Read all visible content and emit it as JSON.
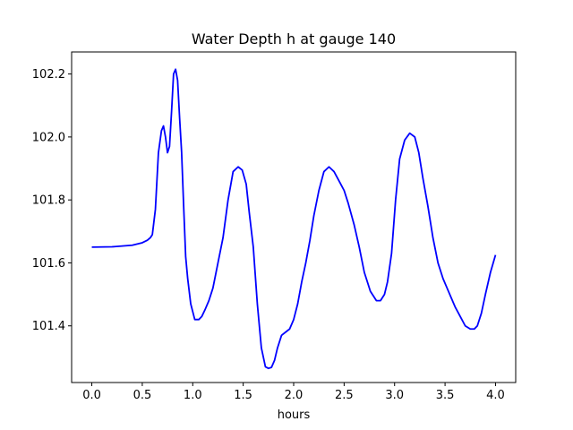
{
  "chart_data": {
    "type": "line",
    "title": "Water Depth h at gauge 140",
    "xlabel": "hours",
    "ylabel": "",
    "xlim": [
      -0.2,
      4.2
    ],
    "ylim": [
      101.22,
      102.27
    ],
    "x_ticks": [
      0.0,
      0.5,
      1.0,
      1.5,
      2.0,
      2.5,
      3.0,
      3.5,
      4.0
    ],
    "x_tick_labels": [
      "0.0",
      "0.5",
      "1.0",
      "1.5",
      "2.0",
      "2.5",
      "3.0",
      "3.5",
      "4.0"
    ],
    "y_ticks": [
      101.4,
      101.6,
      101.8,
      102.0,
      102.2
    ],
    "y_tick_labels": [
      "101.4",
      "101.6",
      "101.8",
      "102.0",
      "102.2"
    ],
    "grid": false,
    "series": [
      {
        "color": "#0000ff",
        "x": [
          0.0,
          0.2,
          0.4,
          0.5,
          0.55,
          0.58,
          0.6,
          0.63,
          0.66,
          0.69,
          0.71,
          0.73,
          0.75,
          0.77,
          0.79,
          0.81,
          0.83,
          0.85,
          0.87,
          0.89,
          0.91,
          0.93,
          0.95,
          0.98,
          1.02,
          1.06,
          1.09,
          1.12,
          1.16,
          1.2,
          1.25,
          1.3,
          1.35,
          1.4,
          1.45,
          1.49,
          1.53,
          1.56,
          1.6,
          1.64,
          1.68,
          1.72,
          1.75,
          1.78,
          1.81,
          1.84,
          1.88,
          1.92,
          1.96,
          2.0,
          2.04,
          2.08,
          2.12,
          2.16,
          2.2,
          2.25,
          2.3,
          2.35,
          2.4,
          2.45,
          2.5,
          2.54,
          2.6,
          2.65,
          2.7,
          2.76,
          2.82,
          2.86,
          2.9,
          2.93,
          2.97,
          3.01,
          3.05,
          3.1,
          3.15,
          3.2,
          3.24,
          3.28,
          3.33,
          3.38,
          3.43,
          3.48,
          3.52,
          3.56,
          3.6,
          3.65,
          3.7,
          3.75,
          3.79,
          3.82,
          3.86,
          3.9,
          3.95,
          4.0
        ],
        "y": [
          101.65,
          101.651,
          101.656,
          101.664,
          101.672,
          101.68,
          101.69,
          101.77,
          101.95,
          102.02,
          102.035,
          102.0,
          101.95,
          101.97,
          102.08,
          102.2,
          102.215,
          102.18,
          102.06,
          101.95,
          101.78,
          101.62,
          101.55,
          101.47,
          101.42,
          101.42,
          101.43,
          101.45,
          101.48,
          101.52,
          101.6,
          101.68,
          101.8,
          101.89,
          101.905,
          101.895,
          101.85,
          101.76,
          101.65,
          101.47,
          101.33,
          101.27,
          101.265,
          101.268,
          101.29,
          101.33,
          101.37,
          101.38,
          101.39,
          101.42,
          101.47,
          101.54,
          101.6,
          101.67,
          101.75,
          101.83,
          101.89,
          101.905,
          101.89,
          101.86,
          101.83,
          101.79,
          101.72,
          101.65,
          101.57,
          101.51,
          101.48,
          101.48,
          101.5,
          101.54,
          101.63,
          101.8,
          101.93,
          101.99,
          102.012,
          102.0,
          101.95,
          101.87,
          101.78,
          101.68,
          101.6,
          101.55,
          101.52,
          101.49,
          101.46,
          101.43,
          101.4,
          101.39,
          101.39,
          101.4,
          101.44,
          101.5,
          101.57,
          101.625
        ]
      }
    ]
  }
}
